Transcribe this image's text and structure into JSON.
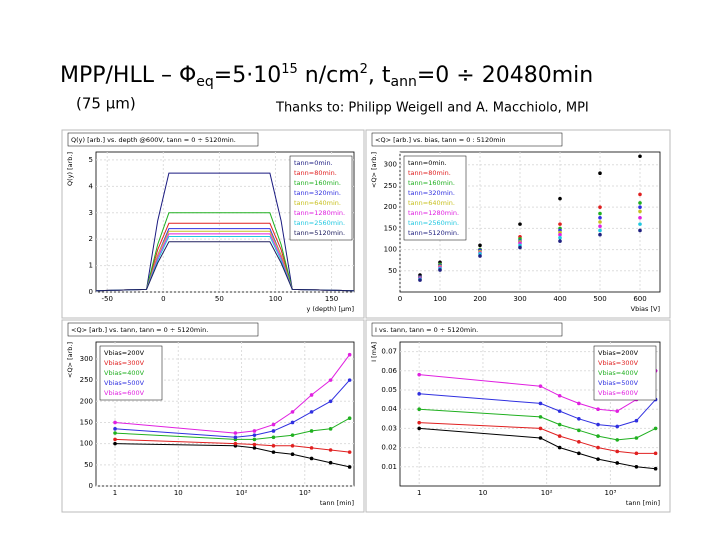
{
  "header": {
    "title": [
      "MPP/HLL – Φ",
      "eq",
      "=5·10",
      "15",
      " n/cm",
      "2",
      ", t",
      "ann",
      "=0 ÷ 20480min"
    ],
    "subtitle": "(75 μm)",
    "credit": "Thanks to: Philipp Weigell and A. Macchiolo, MPI"
  },
  "chart_data": [
    {
      "type": "line",
      "title": "Q(y) [arb.] vs. depth @600V, tann = 0 ÷ 5120min.",
      "x_label": "y (depth) [μm]",
      "y_label": "Q(y) [arb.]",
      "x": [
        -60,
        -15,
        -5,
        5,
        95,
        105,
        115,
        170
      ],
      "xlim": [
        -60,
        170
      ],
      "xticks": [
        -50,
        0,
        50,
        100,
        150
      ],
      "ylim": [
        0,
        5.3
      ],
      "yticks": [
        0,
        1,
        2,
        3,
        4,
        5
      ],
      "legend": "right",
      "grid": true,
      "series": [
        {
          "name": "tann=0min.",
          "color": "#1a1a80",
          "values": [
            0.05,
            0.1,
            2.7,
            4.5,
            4.5,
            2.7,
            0.1,
            0.05
          ]
        },
        {
          "name": "tann=80min.",
          "color": "#e02020",
          "values": [
            0.05,
            0.1,
            1.6,
            2.6,
            2.6,
            1.6,
            0.1,
            0.05
          ]
        },
        {
          "name": "tann=160min.",
          "color": "#20b020",
          "values": [
            0.05,
            0.1,
            1.8,
            3.0,
            3.0,
            1.8,
            0.1,
            0.05
          ]
        },
        {
          "name": "tann=320min.",
          "color": "#3030e0",
          "values": [
            0.05,
            0.1,
            1.4,
            2.4,
            2.4,
            1.4,
            0.1,
            0.05
          ]
        },
        {
          "name": "tann=640min.",
          "color": "#c8c020",
          "values": [
            0.05,
            0.1,
            1.4,
            2.3,
            2.3,
            1.4,
            0.1,
            0.05
          ]
        },
        {
          "name": "tann=1280min.",
          "color": "#e020e0",
          "values": [
            0.05,
            0.1,
            1.3,
            2.2,
            2.2,
            1.3,
            0.1,
            0.05
          ]
        },
        {
          "name": "tann=2560min.",
          "color": "#20c8e0",
          "values": [
            0.05,
            0.1,
            1.2,
            2.1,
            2.1,
            1.2,
            0.1,
            0.05
          ]
        },
        {
          "name": "tann=5120min.",
          "color": "#202060",
          "values": [
            0.05,
            0.1,
            1.1,
            1.9,
            1.9,
            1.1,
            0.1,
            0.05
          ]
        }
      ]
    },
    {
      "type": "scatter",
      "title": "<Q> [arb.] vs. bias, tann = 0 : 5120min",
      "x_label": "Vbias [V]",
      "y_label": "<Q> [arb.]",
      "x": [
        50,
        100,
        200,
        300,
        400,
        500,
        600
      ],
      "xlim": [
        0,
        650
      ],
      "xticks": [
        0,
        100,
        200,
        300,
        400,
        500,
        600
      ],
      "ylim": [
        0,
        330
      ],
      "yticks": [
        50,
        100,
        150,
        200,
        250,
        300
      ],
      "legend": "left",
      "grid": true,
      "series": [
        {
          "name": "tann=0min.",
          "color": "#000000",
          "values": [
            40,
            70,
            110,
            160,
            220,
            280,
            320
          ]
        },
        {
          "name": "tann=80min.",
          "color": "#e02020",
          "values": [
            35,
            65,
            100,
            130,
            160,
            200,
            230
          ]
        },
        {
          "name": "tann=160min.",
          "color": "#20b020",
          "values": [
            35,
            65,
            100,
            125,
            150,
            185,
            210
          ]
        },
        {
          "name": "tann=320min.",
          "color": "#3030e0",
          "values": [
            35,
            62,
            98,
            120,
            145,
            175,
            200
          ]
        },
        {
          "name": "tann=640min.",
          "color": "#c8c020",
          "values": [
            33,
            60,
            95,
            118,
            140,
            165,
            190
          ]
        },
        {
          "name": "tann=1280min.",
          "color": "#e020e0",
          "values": [
            32,
            58,
            92,
            115,
            135,
            155,
            175
          ]
        },
        {
          "name": "tann=2560min.",
          "color": "#20c8e0",
          "values": [
            30,
            55,
            90,
            110,
            128,
            145,
            160
          ]
        },
        {
          "name": "tann=5120min.",
          "color": "#202080",
          "values": [
            28,
            52,
            85,
            105,
            120,
            135,
            145
          ]
        }
      ]
    },
    {
      "type": "line",
      "markers": true,
      "title": "<Q> [arb.] vs. tann, tann = 0 ÷ 5120min.",
      "x_label": "tann [min]",
      "y_label": "<Q> [arb.]",
      "x": [
        1,
        80,
        160,
        320,
        640,
        1280,
        2560,
        5120
      ],
      "xlim": [
        0.5,
        6000
      ],
      "xscale": "log",
      "xticks": [
        1,
        10,
        {
          "value": 100,
          "label": "10²"
        },
        {
          "value": 1000,
          "label": "10³"
        }
      ],
      "ylim": [
        0,
        340
      ],
      "yticks": [
        0,
        50,
        100,
        150,
        200,
        250,
        300
      ],
      "legend": "upper left",
      "grid": true,
      "series": [
        {
          "name": "Vbias=200V",
          "color": "#000000",
          "values": [
            100,
            95,
            90,
            80,
            75,
            65,
            55,
            45
          ]
        },
        {
          "name": "Vbias=300V",
          "color": "#e02020",
          "values": [
            110,
            100,
            98,
            95,
            95,
            90,
            85,
            80
          ]
        },
        {
          "name": "Vbias=400V",
          "color": "#20b020",
          "values": [
            125,
            110,
            110,
            115,
            120,
            130,
            135,
            160
          ]
        },
        {
          "name": "Vbias=500V",
          "color": "#3030e0",
          "values": [
            135,
            115,
            120,
            130,
            150,
            175,
            200,
            250
          ]
        },
        {
          "name": "Vbias=600V",
          "color": "#e020e0",
          "values": [
            150,
            125,
            130,
            145,
            175,
            215,
            250,
            310
          ]
        }
      ]
    },
    {
      "type": "line",
      "markers": true,
      "title": "I vs. tann, tann = 0 ÷ 5120min.",
      "x_label": "tann [min]",
      "y_label": "I [mA]",
      "x": [
        1,
        80,
        160,
        320,
        640,
        1280,
        2560,
        5120
      ],
      "xlim": [
        0.5,
        6000
      ],
      "xscale": "log",
      "xticks": [
        1,
        10,
        {
          "value": 100,
          "label": "10²"
        },
        {
          "value": 1000,
          "label": "10³"
        }
      ],
      "ylim": [
        0,
        0.075
      ],
      "yticks": [
        0.01,
        0.02,
        0.03,
        0.04,
        0.05,
        0.06,
        0.07
      ],
      "legend": "upper right",
      "grid": true,
      "series": [
        {
          "name": "Vbias=200V",
          "color": "#000000",
          "values": [
            0.03,
            0.025,
            0.02,
            0.017,
            0.014,
            0.012,
            0.01,
            0.009
          ]
        },
        {
          "name": "Vbias=300V",
          "color": "#e02020",
          "values": [
            0.033,
            0.03,
            0.026,
            0.023,
            0.02,
            0.018,
            0.017,
            0.017
          ]
        },
        {
          "name": "Vbias=400V",
          "color": "#20b020",
          "values": [
            0.04,
            0.036,
            0.032,
            0.029,
            0.026,
            0.024,
            0.025,
            0.03
          ]
        },
        {
          "name": "Vbias=500V",
          "color": "#3030e0",
          "values": [
            0.048,
            0.043,
            0.039,
            0.035,
            0.032,
            0.031,
            0.034,
            0.045
          ]
        },
        {
          "name": "Vbias=600V",
          "color": "#e020e0",
          "values": [
            0.058,
            0.052,
            0.047,
            0.043,
            0.04,
            0.039,
            0.045,
            0.06
          ]
        }
      ]
    }
  ]
}
